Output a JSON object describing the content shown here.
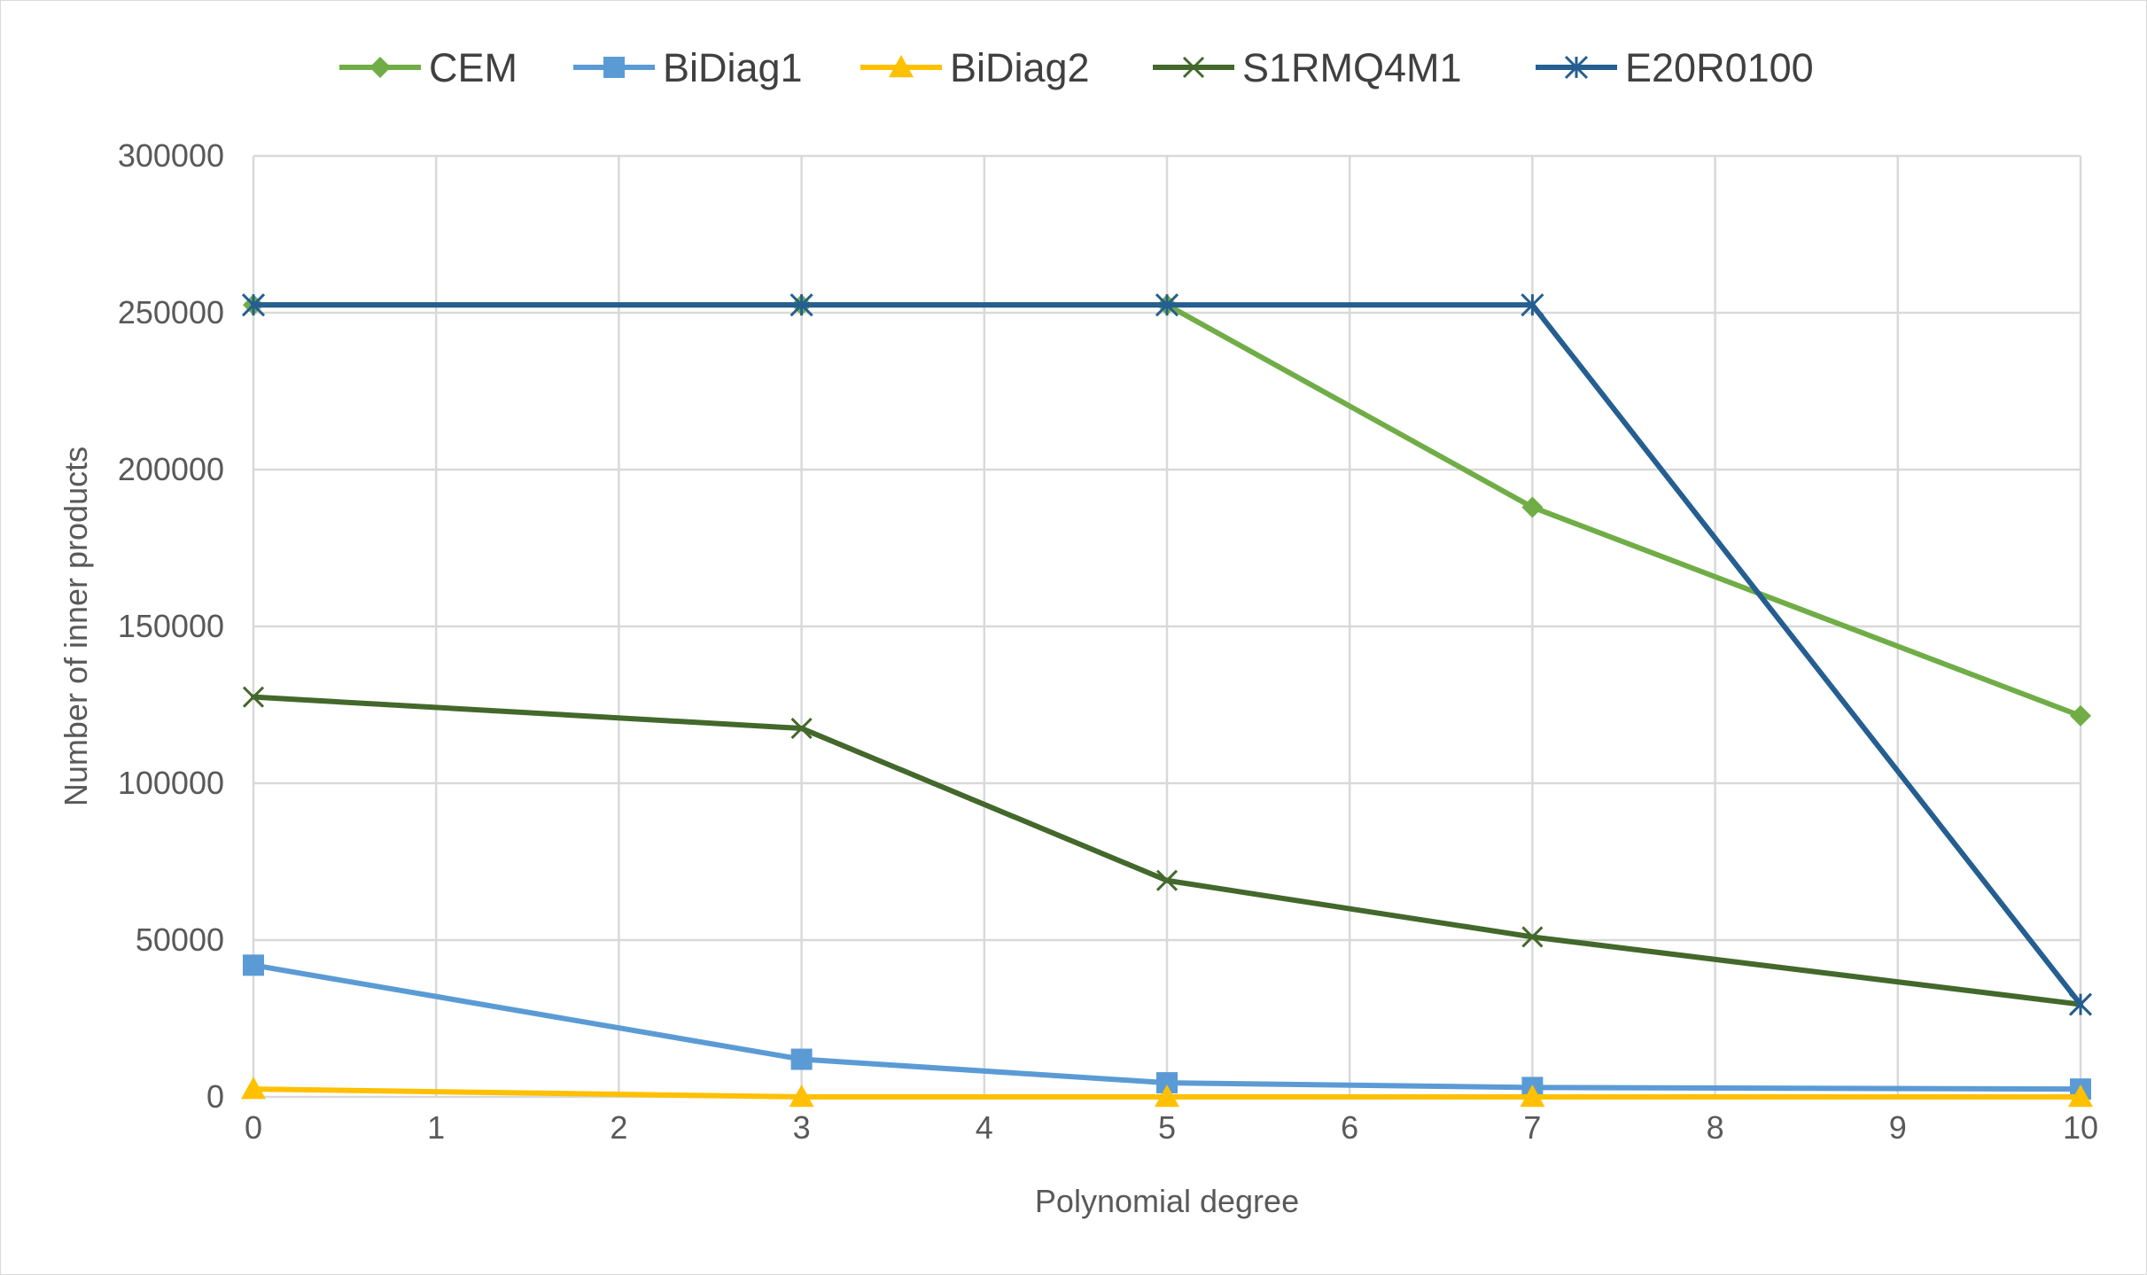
{
  "chart_data": {
    "type": "line",
    "title": "",
    "xlabel": "Polynomial degree",
    "ylabel": "Number of inner products",
    "x_ticks": [
      "0",
      "1",
      "2",
      "3",
      "4",
      "5",
      "6",
      "7",
      "8",
      "9",
      "10"
    ],
    "y_ticks": [
      "0",
      "50000",
      "100000",
      "150000",
      "200000",
      "250000",
      "300000"
    ],
    "xlim": [
      0,
      10
    ],
    "ylim": [
      0,
      300000
    ],
    "grid": "on",
    "legend_position": "top",
    "x": [
      0,
      3,
      5,
      7,
      10
    ],
    "series": [
      {
        "name": "CEM",
        "color": "#70ad47",
        "marker": "diamond",
        "values": [
          252500,
          252500,
          252500,
          188000,
          121500
        ]
      },
      {
        "name": "BiDiag1",
        "color": "#5b9bd5",
        "marker": "square",
        "values": [
          42000,
          12000,
          4500,
          3000,
          2500
        ]
      },
      {
        "name": "BiDiag2",
        "color": "#ffc000",
        "marker": "triangle",
        "values": [
          2500,
          0,
          0,
          0,
          0
        ]
      },
      {
        "name": "S1RMQ4M1",
        "color": "#43682b",
        "marker": "x",
        "values": [
          127500,
          117500,
          69000,
          51000,
          29500
        ]
      },
      {
        "name": "E20R0100",
        "color": "#255e91",
        "marker": "star",
        "values": [
          252500,
          252500,
          252500,
          252500,
          29500
        ]
      }
    ]
  }
}
